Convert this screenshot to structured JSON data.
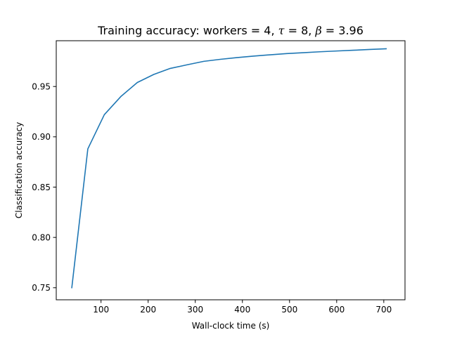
{
  "chart_data": {
    "type": "line",
    "title": {
      "prefix": "Training accuracy: workers = 4, ",
      "tau_symbol": "τ",
      "tau_text": " = 8, ",
      "beta_symbol": "β",
      "beta_text": " = 3.96"
    },
    "xlabel": "Wall-clock time (s)",
    "ylabel": "Classification accuracy",
    "xlim": [
      5,
      745
    ],
    "ylim": [
      0.738,
      0.9955
    ],
    "xticks": [
      100,
      200,
      300,
      400,
      500,
      600,
      700
    ],
    "yticks": [
      0.75,
      0.8,
      0.85,
      0.9,
      0.95
    ],
    "ytick_labels": [
      "0.75",
      "0.80",
      "0.85",
      "0.90",
      "0.95"
    ],
    "grid": false,
    "color": "#1f77b4",
    "series": [
      {
        "x": [
          38,
          72,
          107,
          142,
          177,
          212,
          247,
          282,
          318,
          353,
          388,
          423,
          459,
          494,
          529,
          564,
          600,
          635,
          670,
          705
        ],
        "y": [
          0.75,
          0.888,
          0.922,
          0.94,
          0.954,
          0.962,
          0.968,
          0.9715,
          0.975,
          0.977,
          0.9787,
          0.9802,
          0.9815,
          0.9827,
          0.9836,
          0.9845,
          0.9853,
          0.986,
          0.9868,
          0.9875
        ]
      }
    ]
  }
}
